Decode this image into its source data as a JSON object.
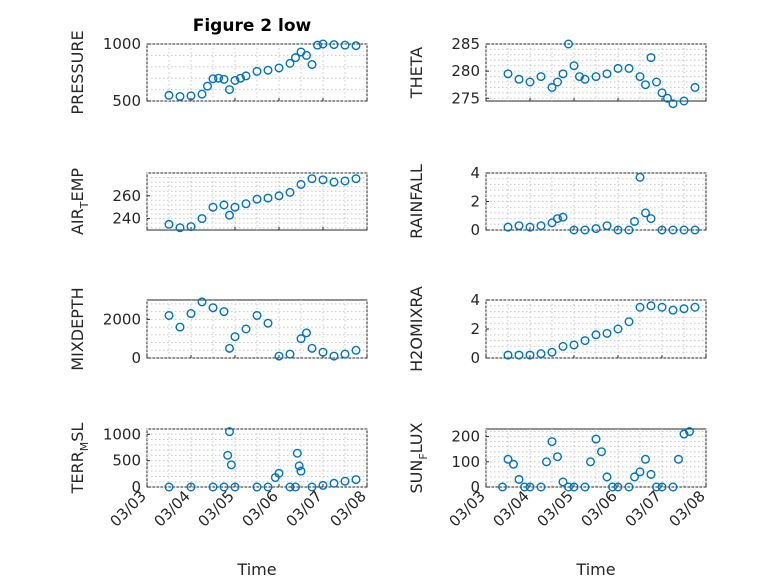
{
  "figure": {
    "title": "Figure 2 low",
    "marker_color": "#0072BD"
  },
  "chart_data": [
    {
      "type": "scatter",
      "marker": "circle",
      "ylabel": "PRESSURE",
      "ylabel_sub": "",
      "ylabel_tail": "",
      "ylim": [
        500,
        1000
      ],
      "yticks": [
        500,
        1000
      ],
      "x_range": [
        "03/03",
        "03/08"
      ],
      "xlabel": "",
      "x": [
        "03/03 12:00",
        "03/03 18:00",
        "03/04 00:00",
        "03/04 06:00",
        "03/04 09:00",
        "03/04 12:00",
        "03/04 15:00",
        "03/04 18:00",
        "03/04 21:00",
        "03/05 00:00",
        "03/05 03:00",
        "03/05 06:00",
        "03/05 12:00",
        "03/05 18:00",
        "03/06 00:00",
        "03/06 06:00",
        "03/06 09:00",
        "03/06 12:00",
        "03/06 15:00",
        "03/06 18:00",
        "03/06 21:00",
        "03/07 00:00",
        "03/07 06:00",
        "03/07 12:00",
        "03/07 18:00"
      ],
      "y": [
        550,
        540,
        545,
        560,
        630,
        695,
        700,
        690,
        600,
        680,
        700,
        720,
        760,
        770,
        790,
        830,
        880,
        930,
        900,
        820,
        990,
        1000,
        995,
        990,
        985
      ]
    },
    {
      "type": "scatter",
      "marker": "circle",
      "ylabel": "THETA",
      "ylabel_sub": "",
      "ylabel_tail": "",
      "ylim": [
        274.5,
        285
      ],
      "yticks": [
        275,
        280,
        285
      ],
      "x_range": [
        "03/03",
        "03/08"
      ],
      "xlabel": "",
      "x": [
        "03/03 12:00",
        "03/03 18:00",
        "03/04 00:00",
        "03/04 06:00",
        "03/04 12:00",
        "03/04 15:00",
        "03/04 18:00",
        "03/04 21:00",
        "03/05 00:00",
        "03/05 03:00",
        "03/05 06:00",
        "03/05 12:00",
        "03/05 18:00",
        "03/06 00:00",
        "03/06 06:00",
        "03/06 12:00",
        "03/06 15:00",
        "03/06 18:00",
        "03/06 21:00",
        "03/07 00:00",
        "03/07 03:00",
        "03/07 06:00",
        "03/07 12:00",
        "03/07 18:00"
      ],
      "y": [
        279.5,
        278.5,
        278,
        279,
        277,
        278,
        279.5,
        285,
        281,
        279,
        278.5,
        279,
        279.5,
        280.5,
        280.5,
        279,
        277.5,
        282.5,
        278,
        276,
        275,
        274,
        274.5,
        277
      ]
    },
    {
      "type": "scatter",
      "marker": "circle",
      "ylabel": "AIR",
      "ylabel_sub": "T",
      "ylabel_tail": "EMP",
      "ylim": [
        230,
        280
      ],
      "yticks": [
        240,
        260
      ],
      "x_range": [
        "03/03",
        "03/08"
      ],
      "xlabel": "",
      "x": [
        "03/03 12:00",
        "03/03 18:00",
        "03/04 00:00",
        "03/04 06:00",
        "03/04 12:00",
        "03/04 18:00",
        "03/04 21:00",
        "03/05 00:00",
        "03/05 06:00",
        "03/05 12:00",
        "03/05 18:00",
        "03/06 00:00",
        "03/06 06:00",
        "03/06 12:00",
        "03/06 18:00",
        "03/07 00:00",
        "03/07 06:00",
        "03/07 12:00",
        "03/07 18:00"
      ],
      "y": [
        235,
        232,
        233,
        240,
        250,
        252,
        243,
        250,
        253,
        257,
        258,
        260,
        263,
        270,
        275,
        274,
        272,
        273,
        275
      ]
    },
    {
      "type": "scatter",
      "marker": "circle",
      "ylabel": "RAINFALL",
      "ylabel_sub": "",
      "ylabel_tail": "",
      "ylim": [
        0,
        4
      ],
      "yticks": [
        0,
        2,
        4
      ],
      "x_range": [
        "03/03",
        "03/08"
      ],
      "xlabel": "",
      "x": [
        "03/03 12:00",
        "03/03 18:00",
        "03/04 00:00",
        "03/04 06:00",
        "03/04 12:00",
        "03/04 15:00",
        "03/04 18:00",
        "03/05 00:00",
        "03/05 06:00",
        "03/05 12:00",
        "03/05 18:00",
        "03/06 00:00",
        "03/06 06:00",
        "03/06 09:00",
        "03/06 12:00",
        "03/06 15:00",
        "03/06 18:00",
        "03/07 00:00",
        "03/07 06:00",
        "03/07 12:00",
        "03/07 18:00"
      ],
      "y": [
        0.2,
        0.3,
        0.2,
        0.3,
        0.5,
        0.8,
        0.9,
        0,
        0,
        0.1,
        0.3,
        0,
        0,
        0.6,
        3.7,
        1.2,
        0.8,
        0,
        0,
        0,
        0
      ]
    },
    {
      "type": "scatter",
      "marker": "circle",
      "ylabel": "MIXDEPTH",
      "ylabel_sub": "",
      "ylabel_tail": "",
      "ylim": [
        0,
        3000
      ],
      "yticks": [
        0,
        2000
      ],
      "x_range": [
        "03/03",
        "03/08"
      ],
      "xlabel": "",
      "x": [
        "03/03 12:00",
        "03/03 18:00",
        "03/04 00:00",
        "03/04 06:00",
        "03/04 12:00",
        "03/04 18:00",
        "03/04 21:00",
        "03/05 00:00",
        "03/05 06:00",
        "03/05 12:00",
        "03/05 18:00",
        "03/06 00:00",
        "03/06 06:00",
        "03/06 12:00",
        "03/06 15:00",
        "03/06 18:00",
        "03/07 00:00",
        "03/07 06:00",
        "03/07 12:00",
        "03/07 18:00"
      ],
      "y": [
        2200,
        1600,
        2300,
        2900,
        2600,
        2400,
        500,
        1100,
        1500,
        2200,
        1800,
        100,
        200,
        1000,
        1300,
        500,
        300,
        100,
        200,
        400
      ]
    },
    {
      "type": "scatter",
      "marker": "circle",
      "ylabel": "H2OMIXRA",
      "ylabel_sub": "",
      "ylabel_tail": "",
      "ylim": [
        0,
        4
      ],
      "yticks": [
        0,
        2,
        4
      ],
      "x_range": [
        "03/03",
        "03/08"
      ],
      "xlabel": "",
      "x": [
        "03/03 12:00",
        "03/03 18:00",
        "03/04 00:00",
        "03/04 06:00",
        "03/04 12:00",
        "03/04 18:00",
        "03/05 00:00",
        "03/05 06:00",
        "03/05 12:00",
        "03/05 18:00",
        "03/06 00:00",
        "03/06 06:00",
        "03/06 12:00",
        "03/06 18:00",
        "03/07 00:00",
        "03/07 06:00",
        "03/07 12:00",
        "03/07 18:00"
      ],
      "y": [
        0.2,
        0.2,
        0.2,
        0.3,
        0.4,
        0.8,
        0.9,
        1.2,
        1.6,
        1.7,
        2,
        2.5,
        3.5,
        3.6,
        3.5,
        3.3,
        3.4,
        3.5
      ]
    },
    {
      "type": "scatter",
      "marker": "circle",
      "ylabel": "TERR",
      "ylabel_sub": "M",
      "ylabel_tail": "SL",
      "ylim": [
        0,
        1100
      ],
      "yticks": [
        0,
        500,
        1000
      ],
      "x_range": [
        "03/03",
        "03/08"
      ],
      "xlabel": "Time",
      "xticks": [
        "03/03",
        "03/04",
        "03/05",
        "03/06",
        "03/07",
        "03/08"
      ],
      "x": [
        "03/03 12:00",
        "03/04 00:00",
        "03/04 12:00",
        "03/04 18:00",
        "03/04 20:00",
        "03/04 21:00",
        "03/04 22:00",
        "03/05 00:00",
        "03/05 12:00",
        "03/05 18:00",
        "03/05 22:00",
        "03/06 00:00",
        "03/06 06:00",
        "03/06 09:00",
        "03/06 10:00",
        "03/06 11:00",
        "03/06 12:00",
        "03/06 18:00",
        "03/07 00:00",
        "03/07 06:00",
        "03/07 12:00",
        "03/07 18:00"
      ],
      "y": [
        0,
        0,
        0,
        0,
        600,
        1050,
        420,
        0,
        0,
        0,
        180,
        260,
        0,
        0,
        640,
        400,
        300,
        0,
        30,
        70,
        110,
        140
      ]
    },
    {
      "type": "scatter",
      "marker": "circle",
      "ylabel": "SUN",
      "ylabel_sub": "F",
      "ylabel_tail": "LUX",
      "ylim": [
        0,
        230
      ],
      "yticks": [
        0,
        100,
        200
      ],
      "x_range": [
        "03/03",
        "03/08"
      ],
      "xlabel": "Time",
      "xticks": [
        "03/03",
        "03/04",
        "03/05",
        "03/06",
        "03/07",
        "03/08"
      ],
      "x": [
        "03/03 09:00",
        "03/03 12:00",
        "03/03 15:00",
        "03/03 18:00",
        "03/03 21:00",
        "03/04 00:00",
        "03/04 06:00",
        "03/04 09:00",
        "03/04 12:00",
        "03/04 15:00",
        "03/04 18:00",
        "03/04 21:00",
        "03/05 00:00",
        "03/05 06:00",
        "03/05 09:00",
        "03/05 12:00",
        "03/05 15:00",
        "03/05 18:00",
        "03/05 21:00",
        "03/06 00:00",
        "03/06 06:00",
        "03/06 09:00",
        "03/06 12:00",
        "03/06 15:00",
        "03/06 18:00",
        "03/06 21:00",
        "03/07 00:00",
        "03/07 06:00",
        "03/07 09:00",
        "03/07 12:00",
        "03/07 15:00"
      ],
      "y": [
        0,
        110,
        90,
        30,
        0,
        0,
        0,
        100,
        180,
        120,
        20,
        0,
        0,
        0,
        100,
        190,
        140,
        40,
        0,
        0,
        0,
        40,
        60,
        110,
        50,
        0,
        0,
        0,
        110,
        210,
        220
      ]
    }
  ]
}
